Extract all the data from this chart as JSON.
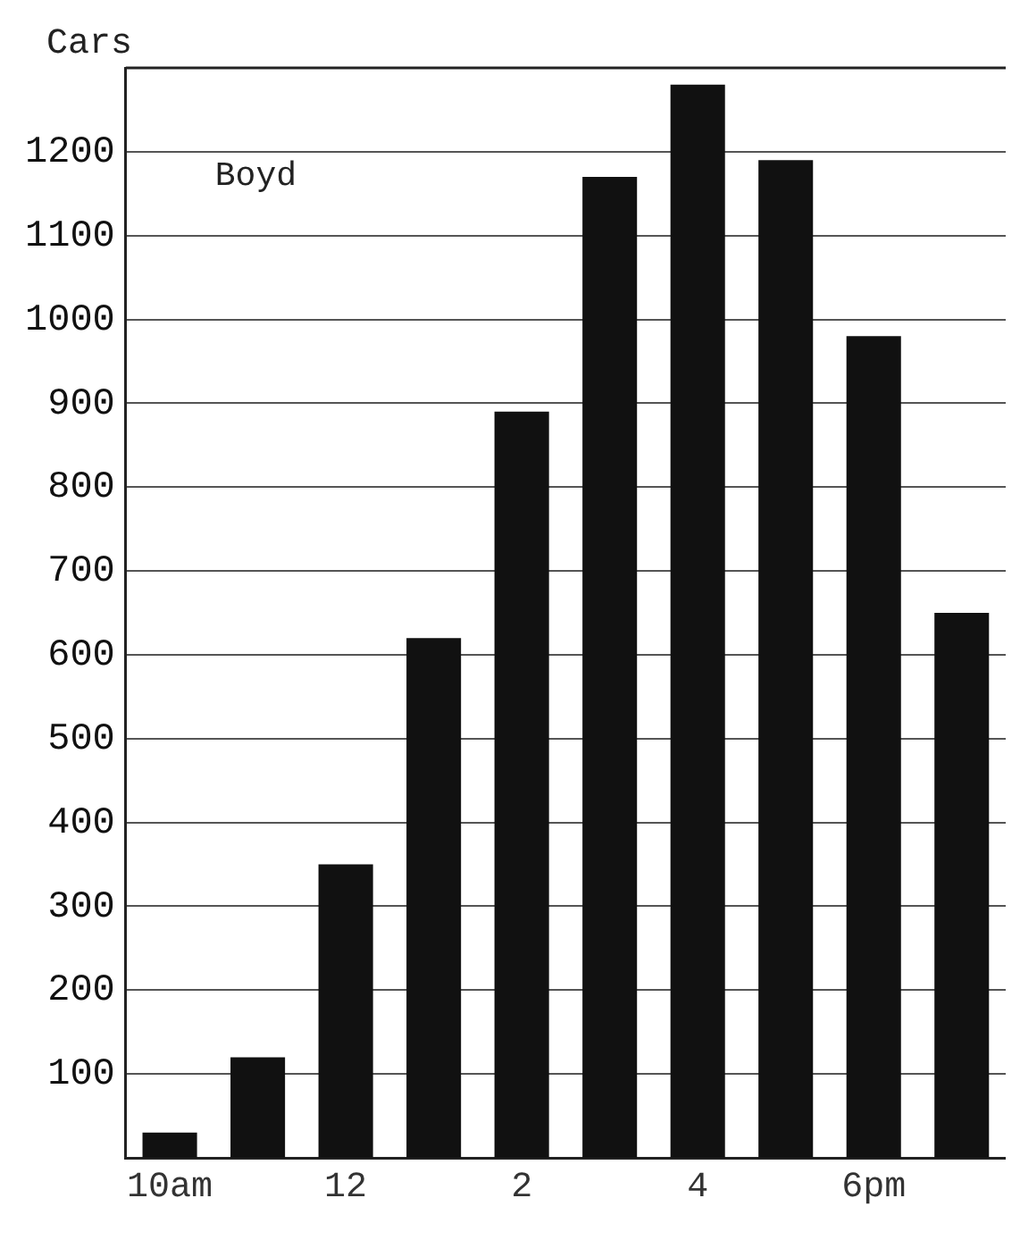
{
  "chart_data": {
    "type": "bar",
    "ylabel": "Cars",
    "categories": [
      "10am",
      null,
      "12",
      null,
      "2",
      null,
      "4",
      null,
      "6pm",
      null
    ],
    "values": [
      30,
      120,
      350,
      620,
      890,
      1170,
      1280,
      1190,
      980,
      650
    ],
    "color": "#111111",
    "ylim": [
      0,
      1300
    ],
    "yticks": [
      100,
      200,
      300,
      400,
      500,
      600,
      700,
      800,
      900,
      1000,
      1100,
      1200
    ],
    "grid": "y",
    "legend": false,
    "annotations": [
      "Boyd"
    ]
  }
}
